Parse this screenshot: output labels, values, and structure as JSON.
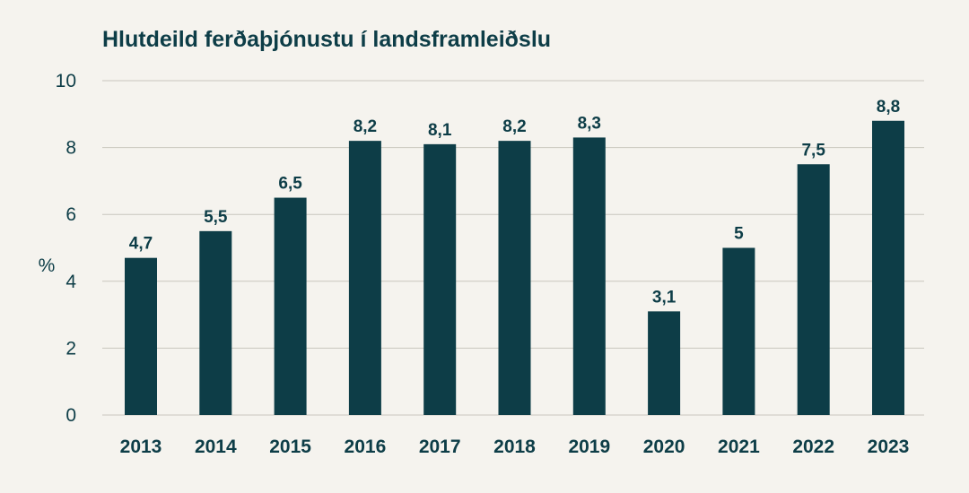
{
  "chart_data": {
    "type": "bar",
    "title": "Hlutdeild ferðaþjónustu í landsframleiðslu",
    "xlabel": "",
    "ylabel": "%",
    "ylim": [
      0,
      10
    ],
    "yticks": [
      0,
      2,
      4,
      6,
      8,
      10
    ],
    "grid": true,
    "categories": [
      "2013",
      "2014",
      "2015",
      "2016",
      "2017",
      "2018",
      "2019",
      "2020",
      "2021",
      "2022",
      "2023"
    ],
    "values": [
      4.7,
      5.5,
      6.5,
      8.2,
      8.1,
      8.2,
      8.3,
      3.1,
      5,
      7.5,
      8.8
    ],
    "value_labels": [
      "4,7",
      "5,5",
      "6,5",
      "8,2",
      "8,1",
      "8,2",
      "8,3",
      "3,1",
      "5",
      "7,5",
      "8,8"
    ]
  },
  "colors": {
    "bar": "#0d3d47",
    "grid": "#c9c6bd",
    "background": "#f5f3ee"
  }
}
